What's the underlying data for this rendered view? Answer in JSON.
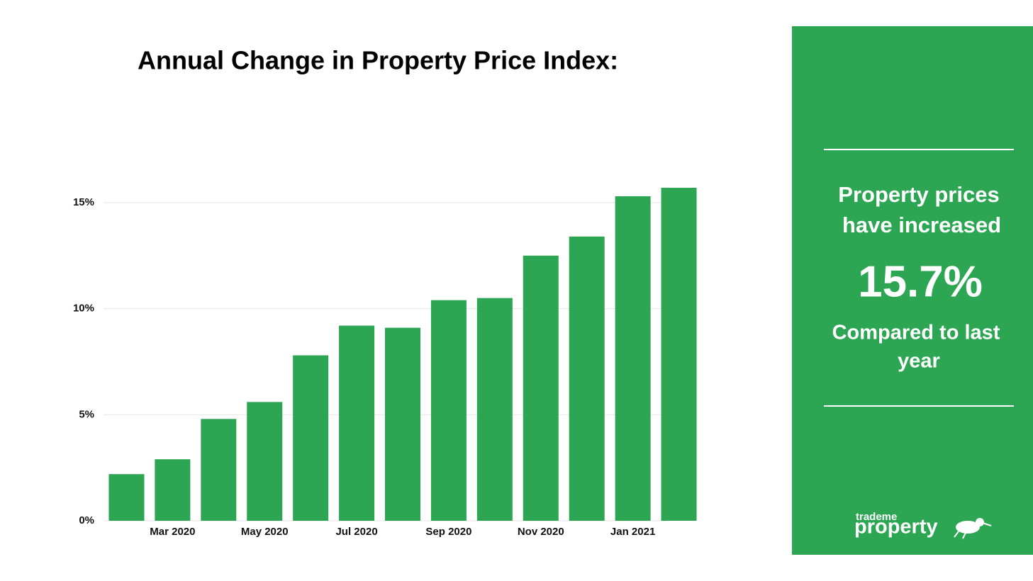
{
  "chart_data": {
    "type": "bar",
    "title": "Annual Change in Property Price Index:",
    "categories": [
      null,
      "Mar 2020",
      null,
      "May 2020",
      null,
      "Jul 2020",
      null,
      "Sep 2020",
      null,
      "Nov 2020",
      null,
      "Jan 2021",
      null
    ],
    "values": [
      2.2,
      2.9,
      4.8,
      5.6,
      7.8,
      9.2,
      9.1,
      10.4,
      10.5,
      12.5,
      13.4,
      15.3,
      15.7
    ],
    "color": "#2ca653",
    "ylim": [
      0,
      16
    ],
    "yticks": [
      {
        "value": 0,
        "label": "0%"
      },
      {
        "value": 5,
        "label": "5%"
      },
      {
        "value": 10,
        "label": "10%"
      },
      {
        "value": 15,
        "label": "15%"
      }
    ],
    "grid": true
  },
  "panel": {
    "line1": "Property prices",
    "line2": "have increased",
    "headline": "15.7%",
    "line3": "Compared to last",
    "line4": "year",
    "logo_small": "trademe",
    "logo_large": "property"
  }
}
